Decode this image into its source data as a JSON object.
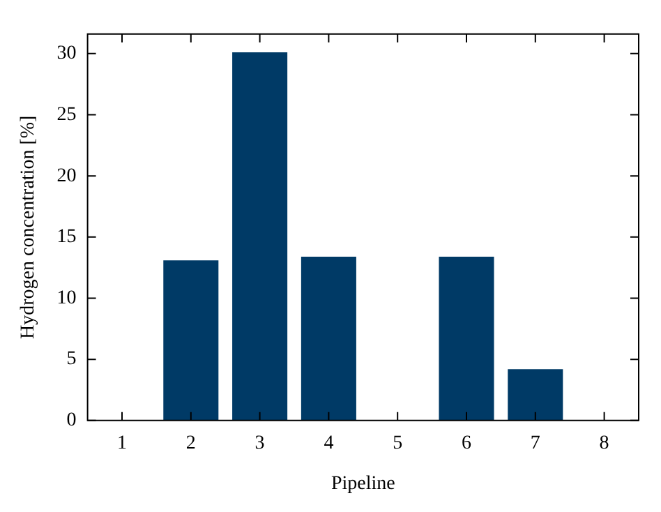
{
  "chart_data": {
    "type": "bar",
    "xlabel": "Pipeline",
    "ylabel": "Hydrogen concentration [%]",
    "categories": [
      "1",
      "2",
      "3",
      "4",
      "5",
      "6",
      "7",
      "8"
    ],
    "values": [
      0,
      13.1,
      30.1,
      13.4,
      0,
      13.4,
      4.2,
      0
    ],
    "color": "#003a66",
    "ylim": [
      0,
      31.6
    ],
    "yticks": [
      0,
      5,
      10,
      15,
      20,
      25,
      30
    ]
  }
}
